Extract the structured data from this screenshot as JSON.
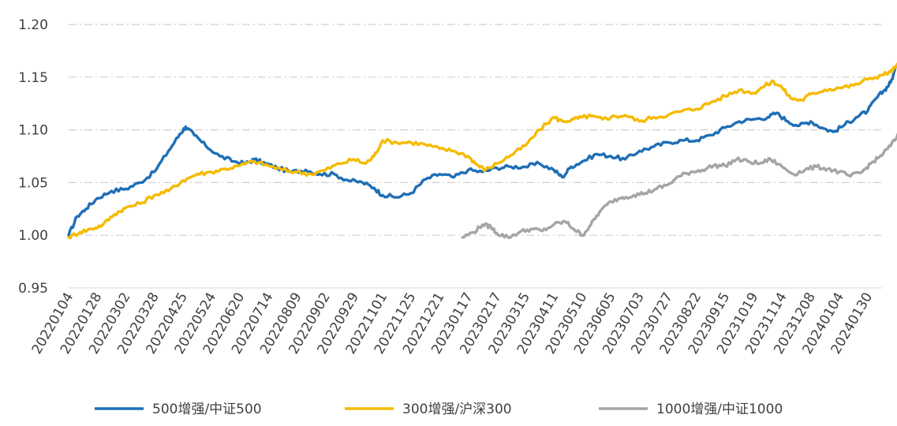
{
  "chart_data": {
    "type": "line",
    "ylim": [
      0.95,
      1.2
    ],
    "y_ticks": [
      "0.95",
      "1.00",
      "1.05",
      "1.10",
      "1.15",
      "1.20"
    ],
    "x_ticks": [
      "20220104",
      "20220128",
      "20220302",
      "20220328",
      "20220425",
      "20220524",
      "20220620",
      "20220714",
      "20220809",
      "20220902",
      "20220929",
      "20221101",
      "20221125",
      "20221221",
      "20230117",
      "20230217",
      "20230315",
      "20230411",
      "20230510",
      "20230605",
      "20230703",
      "20230727",
      "20230822",
      "20230915",
      "20231019",
      "20231114",
      "20231208",
      "20240104",
      "20240130"
    ],
    "grid": "horizontal-dash-dot",
    "legend": "bottom",
    "series": [
      {
        "name": "500增强/中证500",
        "color": "#1f6fb5",
        "points": [
          [
            0,
            1.0
          ],
          [
            0.3,
            1.018
          ],
          [
            0.6,
            1.025
          ],
          [
            1,
            1.035
          ],
          [
            1.5,
            1.042
          ],
          [
            2,
            1.044
          ],
          [
            2.5,
            1.05
          ],
          [
            3,
            1.06
          ],
          [
            3.5,
            1.08
          ],
          [
            3.9,
            1.096
          ],
          [
            4.1,
            1.103
          ],
          [
            4.4,
            1.095
          ],
          [
            4.8,
            1.085
          ],
          [
            5.3,
            1.075
          ],
          [
            5.8,
            1.07
          ],
          [
            6.2,
            1.068
          ],
          [
            6.5,
            1.072
          ],
          [
            6.9,
            1.068
          ],
          [
            7.3,
            1.064
          ],
          [
            7.8,
            1.06
          ],
          [
            8.3,
            1.062
          ],
          [
            8.8,
            1.058
          ],
          [
            9.3,
            1.058
          ],
          [
            9.8,
            1.052
          ],
          [
            10.3,
            1.05
          ],
          [
            10.7,
            1.045
          ],
          [
            11,
            1.038
          ],
          [
            11.5,
            1.036
          ],
          [
            12,
            1.04
          ],
          [
            12.5,
            1.053
          ],
          [
            13,
            1.058
          ],
          [
            13.5,
            1.055
          ],
          [
            14,
            1.062
          ],
          [
            14.5,
            1.06
          ],
          [
            15,
            1.064
          ],
          [
            15.5,
            1.065
          ],
          [
            16,
            1.065
          ],
          [
            16.5,
            1.068
          ],
          [
            17,
            1.062
          ],
          [
            17.3,
            1.055
          ],
          [
            17.6,
            1.065
          ],
          [
            18,
            1.07
          ],
          [
            18.5,
            1.077
          ],
          [
            19,
            1.075
          ],
          [
            19.5,
            1.072
          ],
          [
            20,
            1.08
          ],
          [
            20.5,
            1.084
          ],
          [
            21,
            1.088
          ],
          [
            21.5,
            1.09
          ],
          [
            22,
            1.09
          ],
          [
            22.5,
            1.095
          ],
          [
            23,
            1.102
          ],
          [
            23.5,
            1.108
          ],
          [
            24,
            1.11
          ],
          [
            24.5,
            1.112
          ],
          [
            24.8,
            1.116
          ],
          [
            25.2,
            1.108
          ],
          [
            25.6,
            1.104
          ],
          [
            26,
            1.108
          ],
          [
            26.4,
            1.102
          ],
          [
            26.8,
            1.098
          ],
          [
            27.2,
            1.105
          ],
          [
            27.6,
            1.112
          ],
          [
            28,
            1.118
          ],
          [
            28.3,
            1.13
          ],
          [
            28.6,
            1.138
          ],
          [
            28.8,
            1.145
          ],
          [
            29,
            1.16
          ],
          [
            29.3,
            1.17
          ],
          [
            29.5,
            1.173
          ]
        ]
      },
      {
        "name": "300增强/沪深300",
        "color": "#f5bb00",
        "points": [
          [
            0,
            0.998
          ],
          [
            0.4,
            1.003
          ],
          [
            0.8,
            1.006
          ],
          [
            1.2,
            1.01
          ],
          [
            1.6,
            1.02
          ],
          [
            2,
            1.026
          ],
          [
            2.5,
            1.03
          ],
          [
            3,
            1.038
          ],
          [
            3.5,
            1.042
          ],
          [
            4,
            1.052
          ],
          [
            4.5,
            1.058
          ],
          [
            5,
            1.06
          ],
          [
            5.5,
            1.063
          ],
          [
            6,
            1.066
          ],
          [
            6.5,
            1.07
          ],
          [
            7,
            1.066
          ],
          [
            7.5,
            1.062
          ],
          [
            8,
            1.06
          ],
          [
            8.5,
            1.058
          ],
          [
            9,
            1.062
          ],
          [
            9.5,
            1.068
          ],
          [
            10,
            1.072
          ],
          [
            10.4,
            1.068
          ],
          [
            10.7,
            1.075
          ],
          [
            11,
            1.09
          ],
          [
            11.5,
            1.088
          ],
          [
            12,
            1.088
          ],
          [
            12.5,
            1.086
          ],
          [
            13,
            1.082
          ],
          [
            13.5,
            1.08
          ],
          [
            14,
            1.075
          ],
          [
            14.3,
            1.067
          ],
          [
            14.6,
            1.062
          ],
          [
            15,
            1.068
          ],
          [
            15.5,
            1.076
          ],
          [
            16,
            1.085
          ],
          [
            16.5,
            1.1
          ],
          [
            17,
            1.112
          ],
          [
            17.3,
            1.108
          ],
          [
            17.7,
            1.11
          ],
          [
            18,
            1.112
          ],
          [
            18.3,
            1.113
          ],
          [
            18.7,
            1.11
          ],
          [
            19,
            1.112
          ],
          [
            19.5,
            1.114
          ],
          [
            20,
            1.108
          ],
          [
            20.5,
            1.112
          ],
          [
            21,
            1.114
          ],
          [
            21.5,
            1.118
          ],
          [
            22,
            1.12
          ],
          [
            22.5,
            1.126
          ],
          [
            23,
            1.132
          ],
          [
            23.5,
            1.138
          ],
          [
            24,
            1.135
          ],
          [
            24.4,
            1.142
          ],
          [
            24.7,
            1.146
          ],
          [
            25,
            1.14
          ],
          [
            25.3,
            1.13
          ],
          [
            25.7,
            1.128
          ],
          [
            26,
            1.134
          ],
          [
            26.5,
            1.138
          ],
          [
            27,
            1.14
          ],
          [
            27.5,
            1.142
          ],
          [
            28,
            1.148
          ],
          [
            28.5,
            1.152
          ],
          [
            28.8,
            1.155
          ],
          [
            29,
            1.16
          ],
          [
            29.3,
            1.17
          ],
          [
            29.5,
            1.175
          ]
        ]
      },
      {
        "name": "1000增强/中证1000",
        "color": "#a5a5a5",
        "points": [
          [
            13.8,
            0.998
          ],
          [
            14.2,
            1.003
          ],
          [
            14.5,
            1.01
          ],
          [
            14.8,
            1.008
          ],
          [
            15,
            1.002
          ],
          [
            15.4,
            0.998
          ],
          [
            15.8,
            1.003
          ],
          [
            16.2,
            1.006
          ],
          [
            16.6,
            1.004
          ],
          [
            17,
            1.01
          ],
          [
            17.4,
            1.013
          ],
          [
            17.7,
            1.006
          ],
          [
            18,
            1.0
          ],
          [
            18.3,
            1.01
          ],
          [
            18.6,
            1.022
          ],
          [
            19,
            1.032
          ],
          [
            19.4,
            1.036
          ],
          [
            19.8,
            1.038
          ],
          [
            20.2,
            1.04
          ],
          [
            20.6,
            1.044
          ],
          [
            21,
            1.048
          ],
          [
            21.4,
            1.056
          ],
          [
            21.8,
            1.06
          ],
          [
            22.2,
            1.062
          ],
          [
            22.6,
            1.066
          ],
          [
            23,
            1.066
          ],
          [
            23.4,
            1.072
          ],
          [
            23.8,
            1.07
          ],
          [
            24.2,
            1.068
          ],
          [
            24.6,
            1.072
          ],
          [
            25,
            1.065
          ],
          [
            25.4,
            1.058
          ],
          [
            25.8,
            1.062
          ],
          [
            26.2,
            1.065
          ],
          [
            26.6,
            1.063
          ],
          [
            27,
            1.06
          ],
          [
            27.4,
            1.056
          ],
          [
            27.8,
            1.06
          ],
          [
            28.1,
            1.068
          ],
          [
            28.4,
            1.074
          ],
          [
            28.7,
            1.082
          ],
          [
            29,
            1.092
          ],
          [
            29.3,
            1.105
          ],
          [
            29.5,
            1.12
          ]
        ]
      }
    ]
  }
}
